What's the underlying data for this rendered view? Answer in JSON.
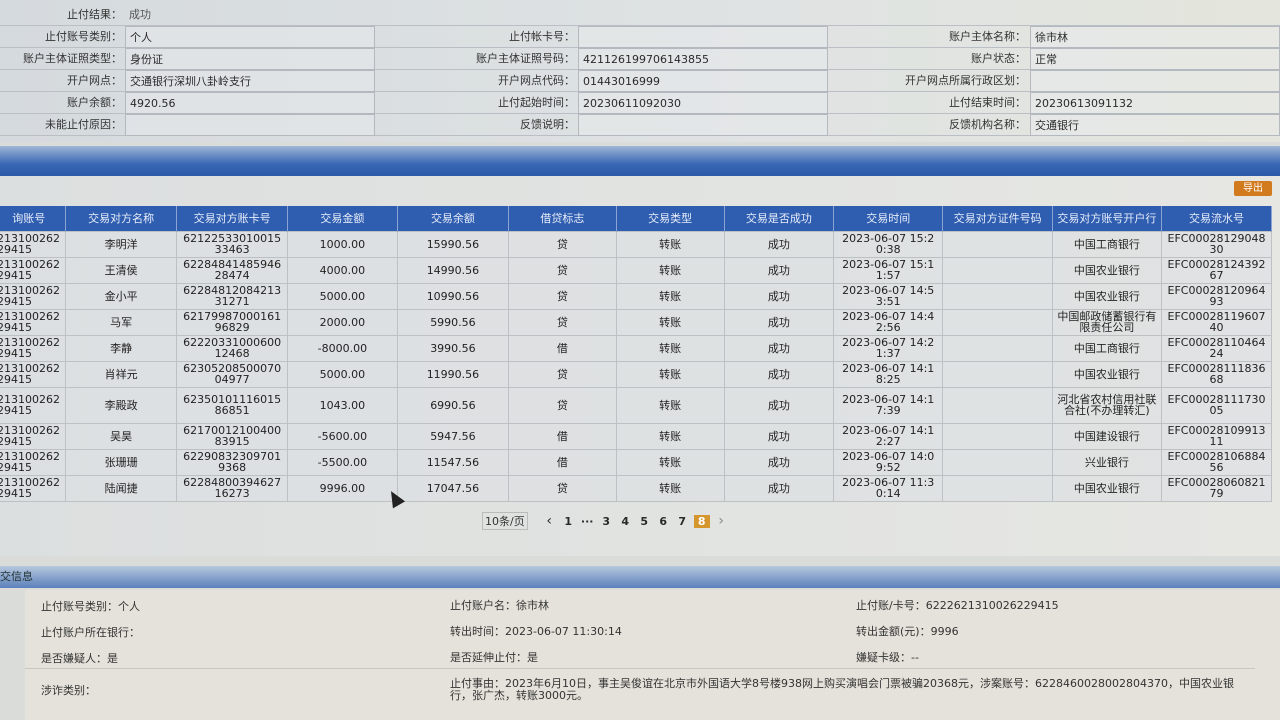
{
  "info": {
    "result": {
      "label": "止付结果：",
      "value": "成功"
    },
    "rows": [
      [
        {
          "label": "止付账号类别：",
          "value": "个人"
        },
        {
          "label": "止付帐卡号：",
          "value": ""
        },
        {
          "label": "账户主体名称：",
          "value": "徐市林"
        }
      ],
      [
        {
          "label": "账户主体证照类型：",
          "value": "身份证"
        },
        {
          "label": "账户主体证照号码：",
          "value": "421126199706143855"
        },
        {
          "label": "账户状态：",
          "value": "正常"
        }
      ],
      [
        {
          "label": "开户网点：",
          "value": "交通银行深圳八卦岭支行"
        },
        {
          "label": "开户网点代码：",
          "value": "01443016999"
        },
        {
          "label": "开户网点所属行政区划：",
          "value": ""
        }
      ],
      [
        {
          "label": "账户余额：",
          "value": "4920.56"
        },
        {
          "label": "止付起始时间：",
          "value": "20230611092030"
        },
        {
          "label": "止付结束时间：",
          "value": "20230613091132"
        }
      ],
      [
        {
          "label": "未能止付原因：",
          "value": ""
        },
        {
          "label": "反馈说明：",
          "value": ""
        },
        {
          "label": "反馈机构名称：",
          "value": "交通银行"
        }
      ]
    ]
  },
  "export_label": "导出",
  "table": {
    "columns": [
      "询账号",
      "交易对方名称",
      "交易对方账卡号",
      "交易金额",
      "交易余额",
      "借贷标志",
      "交易类型",
      "交易是否成功",
      "交易时间",
      "交易对方证件号码",
      "交易对方账号开户行",
      "交易流水号"
    ],
    "rows": [
      [
        "213100262 29415",
        "李明洋",
        "62122533010015 33463",
        "1000.00",
        "15990.56",
        "贷",
        "转账",
        "成功",
        "2023-06-07 15:2 0:38",
        "",
        "中国工商银行",
        "EFC00028129048 30"
      ],
      [
        "213100262 29415",
        "王清侯",
        "62284841485946 28474",
        "4000.00",
        "14990.56",
        "贷",
        "转账",
        "成功",
        "2023-06-07 15:1 1:57",
        "",
        "中国农业银行",
        "EFC00028124392 67"
      ],
      [
        "213100262 29415",
        "金小平",
        "62284812084213 31271",
        "5000.00",
        "10990.56",
        "贷",
        "转账",
        "成功",
        "2023-06-07 14:5 3:51",
        "",
        "中国农业银行",
        "EFC00028120964 93"
      ],
      [
        "213100262 29415",
        "马军",
        "62179987000161 96829",
        "2000.00",
        "5990.56",
        "贷",
        "转账",
        "成功",
        "2023-06-07 14:4 2:56",
        "",
        "中国邮政储蓄银行有限责任公司",
        "EFC00028119607 40"
      ],
      [
        "213100262 29415",
        "李静",
        "62220331000600 12468",
        "-8000.00",
        "3990.56",
        "借",
        "转账",
        "成功",
        "2023-06-07 14:2 1:37",
        "",
        "中国工商银行",
        "EFC00028110464 24"
      ],
      [
        "213100262 29415",
        "肖祥元",
        "62305208500070 04977",
        "5000.00",
        "11990.56",
        "贷",
        "转账",
        "成功",
        "2023-06-07 14:1 8:25",
        "",
        "中国农业银行",
        "EFC00028111836 68"
      ],
      [
        "213100262 29415",
        "李殿政",
        "62350101116015 86851",
        "1043.00",
        "6990.56",
        "贷",
        "转账",
        "成功",
        "2023-06-07 14:1 7:39",
        "",
        "河北省农村信用社联合社(不办理转汇)",
        "EFC00028111730 05"
      ],
      [
        "213100262 29415",
        "吴昊",
        "62170012100400 83915",
        "-5600.00",
        "5947.56",
        "借",
        "转账",
        "成功",
        "2023-06-07 14:1 2:27",
        "",
        "中国建设银行",
        "EFC00028109913 11"
      ],
      [
        "213100262 29415",
        "张珊珊",
        "62290832309701 9368",
        "-5500.00",
        "11547.56",
        "借",
        "转账",
        "成功",
        "2023-06-07 14:0 9:52",
        "",
        "兴业银行",
        "EFC00028106884 56"
      ],
      [
        "213100262 29415",
        "陆闻捷",
        "62284800394627 16273",
        "9996.00",
        "17047.56",
        "贷",
        "转账",
        "成功",
        "2023-06-07 11:3 0:14",
        "",
        "中国农业银行",
        "EFC00028060821 79"
      ]
    ]
  },
  "pager": {
    "page_size": "10条/页",
    "prev": "‹",
    "pages": [
      "1",
      "···",
      "3",
      "4",
      "5",
      "6",
      "7",
      "8"
    ],
    "current": "8",
    "next": "›"
  },
  "section_title": "交信息",
  "detail": {
    "acct_type": "止付账号类别：个人",
    "acct_name": "止付账户名：徐市林",
    "card_no": "止付账/卡号：6222621310026229415",
    "bank": "止付账户所在银行：",
    "out_time": "转出时间：2023-06-07 11:30:14",
    "out_amount": "转出金额(元)：9996",
    "suspect": "是否嫌疑人：是",
    "extend": "是否延伸止付：是",
    "card_level": "嫌疑卡级：--",
    "fraud_type": "涉诈类别：",
    "reason": "止付事由：2023年6月10日，事主吴俊谊在北京市外国语大学8号楼938网上购买演唱会门票被骗20368元，涉案账号：6228460028002804370，中国农业银行，张广杰，转账3000元。"
  }
}
